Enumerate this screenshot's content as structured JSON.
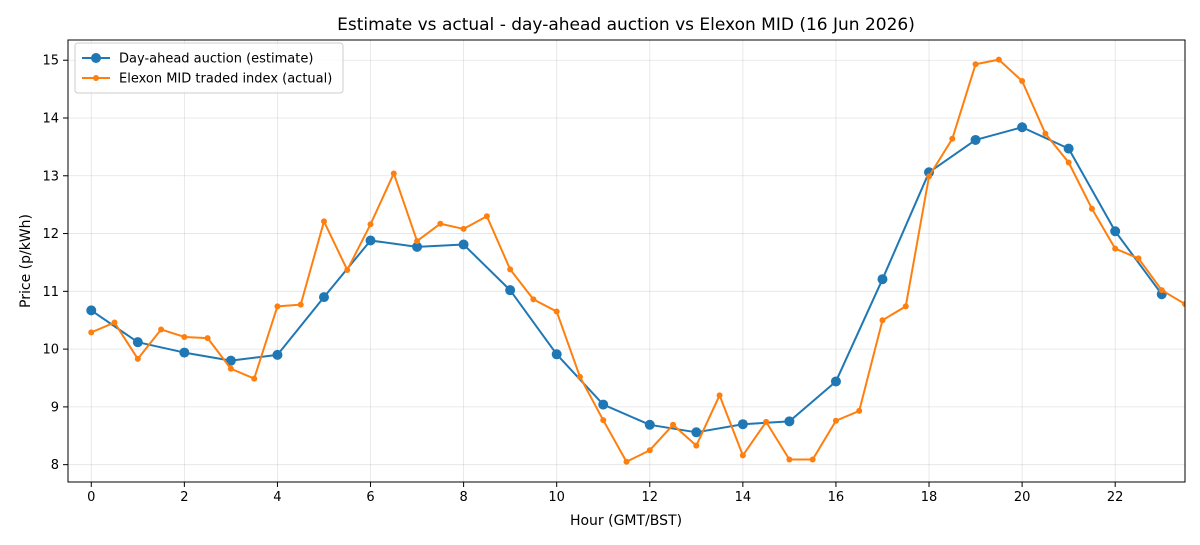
{
  "chart_data": {
    "type": "line",
    "title": "Estimate vs actual - day-ahead auction vs Elexon MID (16 Jun 2026)",
    "xlabel": "Hour (GMT/BST)",
    "ylabel": "Price (p/kWh)",
    "xlim": [
      -0.5,
      23.5
    ],
    "ylim": [
      7.7,
      15.35
    ],
    "x_ticks": [
      0,
      2,
      4,
      6,
      8,
      10,
      12,
      14,
      16,
      18,
      20,
      22
    ],
    "y_ticks": [
      8,
      9,
      10,
      11,
      12,
      13,
      14,
      15
    ],
    "grid": true,
    "legend_position": "top-left",
    "series": [
      {
        "name": "Day-ahead auction (estimate)",
        "color": "#1f77b4",
        "marker": "large-circle",
        "x": [
          0,
          1,
          2,
          3,
          4,
          5,
          6,
          7,
          8,
          9,
          10,
          11,
          12,
          13,
          14,
          15,
          16,
          17,
          18,
          19,
          20,
          21,
          22,
          23
        ],
        "values": [
          10.67,
          10.12,
          9.94,
          9.8,
          9.9,
          10.9,
          11.88,
          11.77,
          11.81,
          11.02,
          9.91,
          9.04,
          8.69,
          8.56,
          8.7,
          8.75,
          9.44,
          11.21,
          13.06,
          13.62,
          13.84,
          13.47,
          12.04,
          10.95
        ]
      },
      {
        "name": "Elexon MID traded index (actual)",
        "color": "#ff7f0e",
        "marker": "small-circle",
        "x": [
          0,
          0.5,
          1,
          1.5,
          2,
          2.5,
          3,
          3.5,
          4,
          4.5,
          5,
          5.5,
          6,
          6.5,
          7,
          7.5,
          8,
          8.5,
          9,
          9.5,
          10,
          10.5,
          11,
          11.5,
          12,
          12.5,
          13,
          13.5,
          14,
          14.5,
          15,
          15.5,
          16,
          16.5,
          17,
          17.5,
          18,
          18.5,
          19,
          19.5,
          20,
          20.5,
          21,
          21.5,
          22,
          22.5,
          23,
          23.5
        ],
        "values": [
          10.29,
          10.46,
          9.83,
          10.34,
          10.21,
          10.19,
          9.66,
          9.49,
          10.74,
          10.77,
          12.21,
          11.37,
          12.16,
          13.04,
          11.87,
          12.17,
          12.08,
          12.3,
          11.38,
          10.86,
          10.65,
          9.52,
          8.77,
          8.05,
          8.25,
          8.69,
          8.33,
          9.2,
          8.16,
          8.74,
          8.09,
          8.09,
          8.76,
          8.93,
          10.5,
          10.74,
          12.99,
          13.64,
          14.93,
          15.01,
          14.64,
          13.73,
          13.23,
          12.43,
          11.74,
          11.57,
          11.02,
          10.78
        ]
      }
    ]
  }
}
